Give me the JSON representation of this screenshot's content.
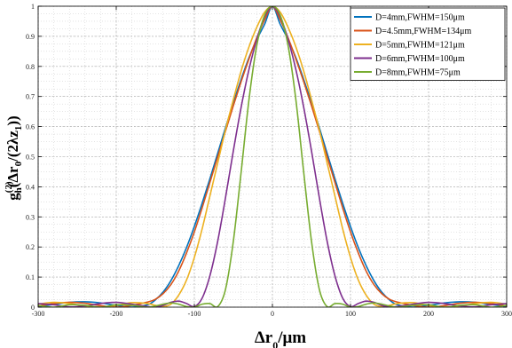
{
  "chart_data": {
    "type": "line",
    "title": "",
    "xlabel": "Δr₀/μm",
    "ylabel": "g_h^(2)(Δr_0/(2λz_1))",
    "xlim": [
      -300,
      300
    ],
    "ylim": [
      0,
      1
    ],
    "x_ticks": [
      -300,
      -200,
      -100,
      0,
      100,
      200,
      300
    ],
    "y_ticks": [
      0,
      0.1,
      0.2,
      0.3,
      0.4,
      0.5,
      0.6,
      0.7,
      0.8,
      0.9,
      1
    ],
    "grid": true,
    "legend_position": "top-right",
    "x": [
      -300,
      -280,
      -260,
      -240,
      -220,
      -200,
      -180,
      -160,
      -150,
      -140,
      -130,
      -120,
      -110,
      -100,
      -90,
      -80,
      -70,
      -60,
      -50,
      -40,
      -30,
      -20,
      -10,
      0,
      10,
      20,
      30,
      40,
      50,
      60,
      70,
      80,
      90,
      100,
      110,
      120,
      130,
      140,
      150,
      160,
      180,
      200,
      220,
      240,
      260,
      280,
      300
    ],
    "series": [
      {
        "name": "D=4mm,FWHM=150μm",
        "color": "#0072BD",
        "values": [
          0.002,
          0.009,
          0.016,
          0.018,
          0.014,
          0.006,
          0.0,
          0.008,
          0.024,
          0.05,
          0.088,
          0.138,
          0.198,
          0.268,
          0.345,
          0.427,
          0.512,
          0.597,
          0.679,
          0.757,
          0.829,
          0.89,
          0.94,
          1.0,
          0.94,
          0.89,
          0.829,
          0.757,
          0.679,
          0.597,
          0.512,
          0.427,
          0.345,
          0.268,
          0.198,
          0.138,
          0.088,
          0.05,
          0.024,
          0.008,
          0.0,
          0.006,
          0.014,
          0.018,
          0.016,
          0.009,
          0.002
        ]
      },
      {
        "name": "D=4.5mm,FWHM=134μm",
        "color": "#D95319",
        "values": [
          0.004,
          0.012,
          0.016,
          0.013,
          0.005,
          0.0,
          0.006,
          0.017,
          0.026,
          0.045,
          0.075,
          0.12,
          0.18,
          0.25,
          0.33,
          0.415,
          0.5,
          0.586,
          0.67,
          0.75,
          0.825,
          0.895,
          0.955,
          1.0,
          0.955,
          0.895,
          0.825,
          0.75,
          0.67,
          0.586,
          0.5,
          0.415,
          0.33,
          0.25,
          0.18,
          0.12,
          0.075,
          0.045,
          0.026,
          0.017,
          0.006,
          0.0,
          0.005,
          0.013,
          0.016,
          0.012,
          0.004
        ]
      },
      {
        "name": "D=5mm,FWHM=121μm",
        "color": "#EDB120",
        "values": [
          0.01,
          0.016,
          0.012,
          0.004,
          0.0,
          0.006,
          0.015,
          0.012,
          0.006,
          0.002,
          0.01,
          0.04,
          0.09,
          0.165,
          0.26,
          0.37,
          0.48,
          0.59,
          0.69,
          0.785,
          0.865,
          0.93,
          0.98,
          1.0,
          0.98,
          0.93,
          0.865,
          0.785,
          0.69,
          0.59,
          0.48,
          0.37,
          0.26,
          0.165,
          0.09,
          0.04,
          0.01,
          0.002,
          0.006,
          0.012,
          0.015,
          0.006,
          0.0,
          0.004,
          0.012,
          0.016,
          0.01
        ]
      },
      {
        "name": "D=6mm,FWHM=100μm",
        "color": "#7E2F8E",
        "values": [
          0.012,
          0.008,
          0.001,
          0.004,
          0.012,
          0.016,
          0.01,
          0.002,
          0.0,
          0.006,
          0.016,
          0.02,
          0.012,
          0.002,
          0.03,
          0.105,
          0.22,
          0.365,
          0.52,
          0.665,
          0.79,
          0.89,
          0.965,
          1.0,
          0.965,
          0.89,
          0.79,
          0.665,
          0.52,
          0.365,
          0.22,
          0.105,
          0.03,
          0.002,
          0.012,
          0.02,
          0.016,
          0.006,
          0.0,
          0.002,
          0.01,
          0.016,
          0.012,
          0.004,
          0.001,
          0.008,
          0.012
        ]
      },
      {
        "name": "D=8mm,FWHM=75μm",
        "color": "#77AC30",
        "values": [
          0.006,
          0.0,
          0.008,
          0.006,
          0.0,
          0.008,
          0.006,
          0.0,
          0.004,
          0.01,
          0.014,
          0.01,
          0.002,
          0.0,
          0.01,
          0.012,
          0.002,
          0.06,
          0.22,
          0.45,
          0.69,
          0.87,
          0.97,
          1.0,
          0.97,
          0.87,
          0.69,
          0.45,
          0.22,
          0.06,
          0.002,
          0.012,
          0.01,
          0.0,
          0.002,
          0.01,
          0.014,
          0.01,
          0.004,
          0.0,
          0.006,
          0.008,
          0.0,
          0.006,
          0.008,
          0.0,
          0.006
        ]
      }
    ]
  }
}
